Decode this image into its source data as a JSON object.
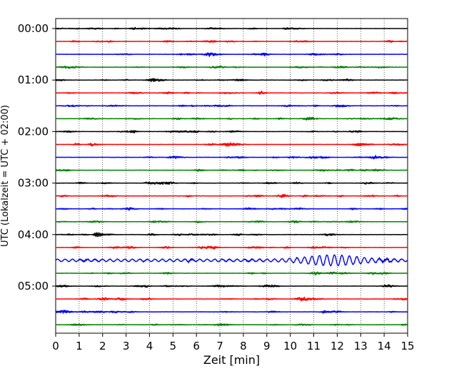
{
  "chart_data": {
    "type": "line",
    "title": "",
    "xlabel": "Zeit  [min]",
    "ylabel": "UTC (Lokalzeit = UTC + 02:00)",
    "xlim": [
      0,
      15
    ],
    "x_ticks": [
      "0",
      "1",
      "2",
      "3",
      "4",
      "5",
      "6",
      "7",
      "8",
      "9",
      "10",
      "11",
      "12",
      "13",
      "14",
      "15"
    ],
    "y_ticks": [
      "00:00",
      "01:00",
      "02:00",
      "03:00",
      "04:00",
      "05:00"
    ],
    "row_interval_min": 15,
    "rows_per_hour": 4,
    "grid": "vertical dotted at each minute",
    "colors": [
      "#000000",
      "#ff0000",
      "#0000ff",
      "#008000"
    ],
    "series": [
      {
        "start": "00:00",
        "color": "#000000",
        "events": []
      },
      {
        "start": "00:15",
        "color": "#ff0000",
        "events": []
      },
      {
        "start": "00:30",
        "color": "#0000ff",
        "events": []
      },
      {
        "start": "00:45",
        "color": "#008000",
        "events": []
      },
      {
        "start": "01:00",
        "color": "#000000",
        "events": []
      },
      {
        "start": "01:15",
        "color": "#ff0000",
        "events": []
      },
      {
        "start": "01:30",
        "color": "#0000ff",
        "events": []
      },
      {
        "start": "01:45",
        "color": "#008000",
        "events": []
      },
      {
        "start": "02:00",
        "color": "#000000",
        "events": []
      },
      {
        "start": "02:15",
        "color": "#ff0000",
        "events": []
      },
      {
        "start": "02:30",
        "color": "#0000ff",
        "events": []
      },
      {
        "start": "02:45",
        "color": "#008000",
        "events": []
      },
      {
        "start": "03:00",
        "color": "#000000",
        "events": []
      },
      {
        "start": "03:15",
        "color": "#ff0000",
        "events": []
      },
      {
        "start": "03:30",
        "color": "#0000ff",
        "events": []
      },
      {
        "start": "03:45",
        "color": "#008000",
        "events": []
      },
      {
        "start": "04:00",
        "color": "#000000",
        "events": [
          {
            "t": 1.8,
            "amp": 3
          }
        ]
      },
      {
        "start": "04:15",
        "color": "#ff0000",
        "events": []
      },
      {
        "start": "04:30",
        "color": "#0000ff",
        "events": [
          {
            "t": 11.8,
            "amp": 6
          }
        ]
      },
      {
        "start": "04:45",
        "color": "#008000",
        "events": []
      },
      {
        "start": "05:00",
        "color": "#000000",
        "events": []
      },
      {
        "start": "05:15",
        "color": "#ff0000",
        "events": []
      },
      {
        "start": "05:30",
        "color": "#0000ff",
        "events": []
      },
      {
        "start": "05:45",
        "color": "#008000",
        "events": []
      }
    ]
  }
}
